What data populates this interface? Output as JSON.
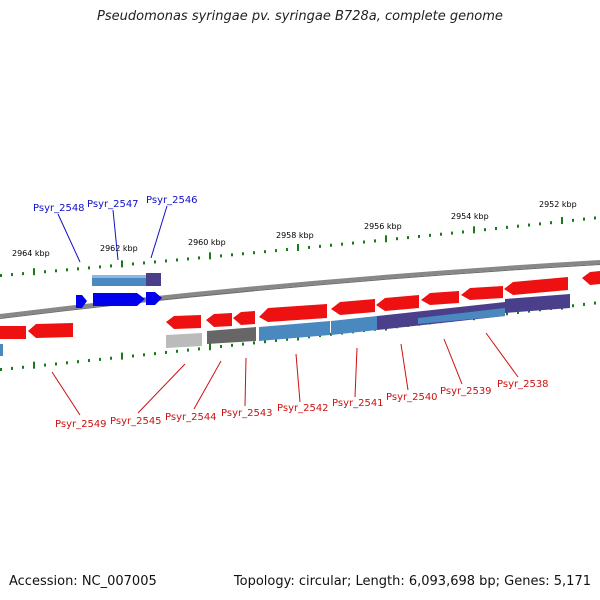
{
  "title": "Pseudomonas syringae pv. syringae B728a, complete genome",
  "footer": {
    "accession": "Accession: NC_007005",
    "summary": "Topology: circular; Length: 6,093,698 bp; Genes: 5,171"
  },
  "colors": {
    "backbone": "#888888",
    "tick": "#1a7a1a",
    "forward_gene": "#0000ee",
    "forward_label": "#1010c8",
    "reverse_gene": "#ee1111",
    "reverse_label": "#cc1111",
    "feature_blue": "#4a88c0",
    "feature_purple": "#4a3f8a",
    "feature_gray": "#666666",
    "feature_lightgray": "#bbbbbb"
  },
  "scale_labels": [
    "2964 kbp",
    "2962 kbp",
    "2960 kbp",
    "2958 kbp",
    "2956 kbp",
    "2954 kbp",
    "2952 kbp"
  ],
  "forward_labels": [
    "Psyr_2548",
    "Psyr_2547",
    "Psyr_2546"
  ],
  "reverse_labels": [
    "Psyr_2549",
    "Psyr_2545",
    "Psyr_2544",
    "Psyr_2543",
    "Psyr_2542",
    "Psyr_2541",
    "Psyr_2540",
    "Psyr_2539",
    "Psyr_2538"
  ]
}
